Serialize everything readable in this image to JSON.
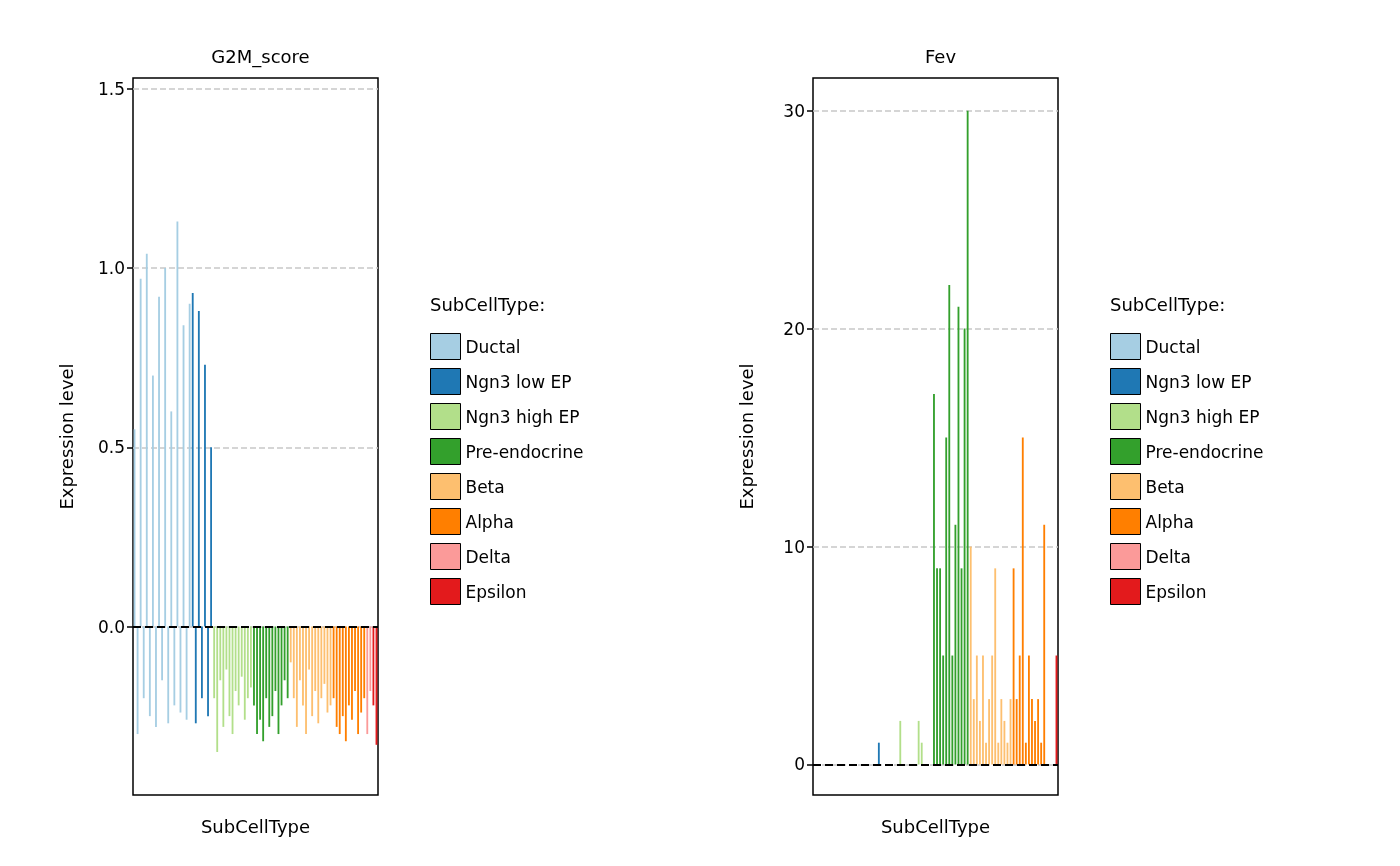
{
  "chart_data": [
    {
      "type": "bar",
      "title": "G2M_score",
      "xlabel": "SubCellType",
      "ylabel": "Expression level",
      "legend_title": "SubCellType:",
      "legend": "right",
      "grid": "y",
      "tick_labels": "y",
      "ylim": [
        -0.47,
        1.53
      ],
      "yticks": [
        {
          "value": 0,
          "label": "0.0"
        },
        0.5,
        {
          "value": 1,
          "label": "1.0"
        },
        1.5
      ],
      "categories": [
        null,
        null,
        null,
        null,
        null,
        null,
        null,
        null,
        null,
        null,
        null,
        null,
        null,
        null,
        null,
        null,
        null,
        null,
        null,
        null,
        null,
        null,
        null,
        null,
        null,
        null,
        null,
        null,
        null,
        null,
        null,
        null,
        null,
        null,
        null,
        null,
        null,
        null,
        null,
        null,
        null,
        null,
        null,
        null,
        null,
        null,
        null,
        null,
        null,
        null,
        null,
        null,
        null,
        null,
        null,
        null,
        null,
        null,
        null,
        null,
        null,
        null,
        null,
        null,
        null,
        null,
        null,
        null,
        null,
        null,
        null,
        null,
        null,
        null,
        null,
        null,
        null,
        null,
        null,
        null
      ],
      "series": [
        {
          "name": "Ductal",
          "color": "#a6cee3",
          "values": [
            0.55,
            -0.3,
            0.97,
            -0.2,
            1.04,
            -0.25,
            0.7,
            -0.28,
            0.92,
            -0.15,
            1.0,
            -0.27,
            0.6,
            -0.22,
            1.13,
            -0.24,
            0.84,
            -0.26,
            0.9,
            null,
            null,
            null,
            null,
            null,
            null,
            null,
            null,
            null,
            null,
            null,
            null,
            null,
            null,
            null,
            null,
            null,
            null,
            null,
            null,
            null,
            null,
            null,
            null,
            null,
            null,
            null,
            null,
            null,
            null,
            null,
            null,
            null,
            null,
            null,
            null,
            null,
            null,
            null,
            null,
            null,
            null,
            null,
            null,
            null,
            null,
            null,
            null,
            null,
            null,
            null,
            null,
            null,
            null,
            null,
            null,
            null,
            null,
            null,
            null,
            null
          ]
        },
        {
          "name": "Ngn3 low EP",
          "color": "#1f78b4",
          "values": [
            null,
            null,
            null,
            null,
            null,
            null,
            null,
            null,
            null,
            null,
            null,
            null,
            null,
            null,
            null,
            null,
            null,
            null,
            null,
            0.93,
            -0.27,
            0.88,
            -0.2,
            0.73,
            -0.25,
            0.5,
            null,
            null,
            null,
            null,
            null,
            null,
            null,
            null,
            null,
            null,
            null,
            null,
            null,
            null,
            null,
            null,
            null,
            null,
            null,
            null,
            null,
            null,
            null,
            null,
            null,
            null,
            null,
            null,
            null,
            null,
            null,
            null,
            null,
            null,
            null,
            null,
            null,
            null,
            null,
            null,
            null,
            null,
            null,
            null,
            null,
            null,
            null,
            null,
            null,
            null,
            null,
            null,
            null,
            null
          ]
        },
        {
          "name": "Ngn3 high EP",
          "color": "#b2df8a",
          "values": [
            null,
            null,
            null,
            null,
            null,
            null,
            null,
            null,
            null,
            null,
            null,
            null,
            null,
            null,
            null,
            null,
            null,
            null,
            null,
            null,
            null,
            null,
            null,
            null,
            null,
            null,
            -0.2,
            -0.35,
            -0.15,
            -0.28,
            -0.12,
            -0.25,
            -0.3,
            -0.18,
            -0.22,
            -0.14,
            -0.26,
            -0.2,
            -0.17,
            null,
            null,
            null,
            null,
            null,
            null,
            null,
            null,
            null,
            null,
            null,
            null,
            null,
            null,
            null,
            null,
            null,
            null,
            null,
            null,
            null,
            null,
            null,
            null,
            null,
            null,
            null,
            null,
            null,
            null,
            null,
            null,
            null,
            null,
            null,
            null,
            null,
            null,
            null,
            null,
            null
          ]
        },
        {
          "name": "Pre-endocrine",
          "color": "#33a02c",
          "values": [
            null,
            null,
            null,
            null,
            null,
            null,
            null,
            null,
            null,
            null,
            null,
            null,
            null,
            null,
            null,
            null,
            null,
            null,
            null,
            null,
            null,
            null,
            null,
            null,
            null,
            null,
            null,
            null,
            null,
            null,
            null,
            null,
            null,
            null,
            null,
            null,
            null,
            null,
            null,
            -0.22,
            -0.3,
            -0.26,
            -0.32,
            -0.2,
            -0.28,
            -0.25,
            -0.18,
            -0.3,
            -0.22,
            -0.15,
            -0.2,
            null,
            null,
            null,
            null,
            null,
            null,
            null,
            null,
            null,
            null,
            null,
            null,
            null,
            null,
            null,
            null,
            null,
            null,
            null,
            null,
            null,
            null,
            null,
            null,
            null,
            null,
            null,
            null,
            null
          ]
        },
        {
          "name": "Beta",
          "color": "#fdbf6f",
          "values": [
            null,
            null,
            null,
            null,
            null,
            null,
            null,
            null,
            null,
            null,
            null,
            null,
            null,
            null,
            null,
            null,
            null,
            null,
            null,
            null,
            null,
            null,
            null,
            null,
            null,
            null,
            null,
            null,
            null,
            null,
            null,
            null,
            null,
            null,
            null,
            null,
            null,
            null,
            null,
            null,
            null,
            null,
            null,
            null,
            null,
            null,
            null,
            null,
            null,
            null,
            null,
            -0.1,
            -0.2,
            -0.28,
            -0.15,
            -0.22,
            -0.3,
            -0.12,
            -0.25,
            -0.18,
            -0.27,
            -0.2,
            -0.16,
            -0.24,
            -0.22,
            null,
            null,
            null,
            null,
            null,
            null,
            null,
            null,
            null,
            null,
            null,
            null,
            null,
            null,
            null
          ]
        },
        {
          "name": "Alpha",
          "color": "#ff7f00",
          "values": [
            null,
            null,
            null,
            null,
            null,
            null,
            null,
            null,
            null,
            null,
            null,
            null,
            null,
            null,
            null,
            null,
            null,
            null,
            null,
            null,
            null,
            null,
            null,
            null,
            null,
            null,
            null,
            null,
            null,
            null,
            null,
            null,
            null,
            null,
            null,
            null,
            null,
            null,
            null,
            null,
            null,
            null,
            null,
            null,
            null,
            null,
            null,
            null,
            null,
            null,
            null,
            null,
            null,
            null,
            null,
            null,
            null,
            null,
            null,
            null,
            null,
            null,
            null,
            null,
            null,
            -0.2,
            -0.28,
            -0.3,
            -0.25,
            -0.32,
            -0.22,
            -0.26,
            -0.18,
            -0.3,
            -0.24,
            -0.2,
            null,
            null,
            null,
            null
          ]
        },
        {
          "name": "Delta",
          "color": "#fb9a99",
          "values": [
            null,
            null,
            null,
            null,
            null,
            null,
            null,
            null,
            null,
            null,
            null,
            null,
            null,
            null,
            null,
            null,
            null,
            null,
            null,
            null,
            null,
            null,
            null,
            null,
            null,
            null,
            null,
            null,
            null,
            null,
            null,
            null,
            null,
            null,
            null,
            null,
            null,
            null,
            null,
            null,
            null,
            null,
            null,
            null,
            null,
            null,
            null,
            null,
            null,
            null,
            null,
            null,
            null,
            null,
            null,
            null,
            null,
            null,
            null,
            null,
            null,
            null,
            null,
            null,
            null,
            null,
            null,
            null,
            null,
            null,
            null,
            null,
            null,
            null,
            null,
            null,
            -0.3,
            -0.18,
            null,
            null
          ]
        },
        {
          "name": "Epsilon",
          "color": "#e31a1c",
          "values": [
            null,
            null,
            null,
            null,
            null,
            null,
            null,
            null,
            null,
            null,
            null,
            null,
            null,
            null,
            null,
            null,
            null,
            null,
            null,
            null,
            null,
            null,
            null,
            null,
            null,
            null,
            null,
            null,
            null,
            null,
            null,
            null,
            null,
            null,
            null,
            null,
            null,
            null,
            null,
            null,
            null,
            null,
            null,
            null,
            null,
            null,
            null,
            null,
            null,
            null,
            null,
            null,
            null,
            null,
            null,
            null,
            null,
            null,
            null,
            null,
            null,
            null,
            null,
            null,
            null,
            null,
            null,
            null,
            null,
            null,
            null,
            null,
            null,
            null,
            null,
            null,
            null,
            null,
            -0.22,
            -0.33
          ]
        }
      ],
      "ref_lines": [
        {
          "axis": "y",
          "value": 0,
          "color": "#000000",
          "line_style": "dashed"
        }
      ]
    },
    {
      "type": "bar",
      "title": "Fev",
      "xlabel": "SubCellType",
      "ylabel": "Expression level",
      "legend_title": "SubCellType:",
      "legend": "right",
      "grid": "y",
      "tick_labels": "y",
      "ylim": [
        -1.4,
        31.5
      ],
      "yticks": [
        0,
        10,
        20,
        30
      ],
      "categories": [
        null,
        null,
        null,
        null,
        null,
        null,
        null,
        null,
        null,
        null,
        null,
        null,
        null,
        null,
        null,
        null,
        null,
        null,
        null,
        null,
        null,
        null,
        null,
        null,
        null,
        null,
        null,
        null,
        null,
        null,
        null,
        null,
        null,
        null,
        null,
        null,
        null,
        null,
        null,
        null,
        null,
        null,
        null,
        null,
        null,
        null,
        null,
        null,
        null,
        null,
        null,
        null,
        null,
        null,
        null,
        null,
        null,
        null,
        null,
        null,
        null,
        null,
        null,
        null,
        null,
        null,
        null,
        null,
        null,
        null,
        null,
        null,
        null,
        null,
        null,
        null,
        null,
        null,
        null,
        null
      ],
      "series": [
        {
          "name": "Ductal",
          "color": "#a6cee3",
          "values": [
            0,
            0,
            0,
            0,
            0,
            0,
            0,
            0,
            0,
            0,
            0,
            0,
            0,
            0,
            0,
            0,
            0,
            0,
            0,
            null,
            null,
            null,
            null,
            null,
            null,
            null,
            null,
            null,
            null,
            null,
            null,
            null,
            null,
            null,
            null,
            null,
            null,
            null,
            null,
            null,
            null,
            null,
            null,
            null,
            null,
            null,
            null,
            null,
            null,
            null,
            null,
            null,
            null,
            null,
            null,
            null,
            null,
            null,
            null,
            null,
            null,
            null,
            null,
            null,
            null,
            null,
            null,
            null,
            null,
            null,
            null,
            null,
            null,
            null,
            null,
            null,
            null,
            null,
            null,
            null
          ]
        },
        {
          "name": "Ngn3 low EP",
          "color": "#1f78b4",
          "values": [
            null,
            null,
            null,
            null,
            null,
            null,
            null,
            null,
            null,
            null,
            null,
            null,
            null,
            null,
            null,
            null,
            null,
            null,
            null,
            0,
            0,
            1,
            0,
            0,
            0,
            0,
            null,
            null,
            null,
            null,
            null,
            null,
            null,
            null,
            null,
            null,
            null,
            null,
            null,
            null,
            null,
            null,
            null,
            null,
            null,
            null,
            null,
            null,
            null,
            null,
            null,
            null,
            null,
            null,
            null,
            null,
            null,
            null,
            null,
            null,
            null,
            null,
            null,
            null,
            null,
            null,
            null,
            null,
            null,
            null,
            null,
            null,
            null,
            null,
            null,
            null,
            null,
            null,
            null,
            null
          ]
        },
        {
          "name": "Ngn3 high EP",
          "color": "#b2df8a",
          "values": [
            null,
            null,
            null,
            null,
            null,
            null,
            null,
            null,
            null,
            null,
            null,
            null,
            null,
            null,
            null,
            null,
            null,
            null,
            null,
            null,
            null,
            null,
            null,
            null,
            null,
            null,
            0,
            0,
            2,
            0,
            0,
            0,
            0,
            0,
            2,
            1,
            0,
            0,
            0,
            null,
            null,
            null,
            null,
            null,
            null,
            null,
            null,
            null,
            null,
            null,
            null,
            null,
            null,
            null,
            null,
            null,
            null,
            null,
            null,
            null,
            null,
            null,
            null,
            null,
            null,
            null,
            null,
            null,
            null,
            null,
            null,
            null,
            null,
            null,
            null,
            null,
            null,
            null,
            null,
            null
          ]
        },
        {
          "name": "Pre-endocrine",
          "color": "#33a02c",
          "values": [
            null,
            null,
            null,
            null,
            null,
            null,
            null,
            null,
            null,
            null,
            null,
            null,
            null,
            null,
            null,
            null,
            null,
            null,
            null,
            null,
            null,
            null,
            null,
            null,
            null,
            null,
            null,
            null,
            null,
            null,
            null,
            null,
            null,
            null,
            null,
            null,
            null,
            null,
            null,
            17,
            9,
            9,
            5,
            15,
            22,
            5,
            11,
            21,
            9,
            20,
            30,
            null,
            null,
            null,
            null,
            null,
            null,
            null,
            null,
            null,
            null,
            null,
            null,
            null,
            null,
            null,
            null,
            null,
            null,
            null,
            null,
            null,
            null,
            null,
            null,
            null,
            null,
            null,
            null,
            null
          ]
        },
        {
          "name": "Beta",
          "color": "#fdbf6f",
          "values": [
            null,
            null,
            null,
            null,
            null,
            null,
            null,
            null,
            null,
            null,
            null,
            null,
            null,
            null,
            null,
            null,
            null,
            null,
            null,
            null,
            null,
            null,
            null,
            null,
            null,
            null,
            null,
            null,
            null,
            null,
            null,
            null,
            null,
            null,
            null,
            null,
            null,
            null,
            null,
            null,
            null,
            null,
            null,
            null,
            null,
            null,
            null,
            null,
            null,
            null,
            null,
            10,
            3,
            5,
            2,
            5,
            1,
            3,
            5,
            9,
            1,
            3,
            2,
            1,
            3,
            null,
            null,
            null,
            null,
            null,
            null,
            null,
            null,
            null,
            null,
            null,
            null,
            null,
            null,
            null
          ]
        },
        {
          "name": "Alpha",
          "color": "#ff7f00",
          "values": [
            null,
            null,
            null,
            null,
            null,
            null,
            null,
            null,
            null,
            null,
            null,
            null,
            null,
            null,
            null,
            null,
            null,
            null,
            null,
            null,
            null,
            null,
            null,
            null,
            null,
            null,
            null,
            null,
            null,
            null,
            null,
            null,
            null,
            null,
            null,
            null,
            null,
            null,
            null,
            null,
            null,
            null,
            null,
            null,
            null,
            null,
            null,
            null,
            null,
            null,
            null,
            null,
            null,
            null,
            null,
            null,
            null,
            null,
            null,
            null,
            null,
            null,
            null,
            null,
            null,
            9,
            3,
            5,
            15,
            1,
            5,
            3,
            2,
            3,
            1,
            11,
            null,
            null,
            null,
            null
          ]
        },
        {
          "name": "Delta",
          "color": "#fb9a99",
          "values": [
            null,
            null,
            null,
            null,
            null,
            null,
            null,
            null,
            null,
            null,
            null,
            null,
            null,
            null,
            null,
            null,
            null,
            null,
            null,
            null,
            null,
            null,
            null,
            null,
            null,
            null,
            null,
            null,
            null,
            null,
            null,
            null,
            null,
            null,
            null,
            null,
            null,
            null,
            null,
            null,
            null,
            null,
            null,
            null,
            null,
            null,
            null,
            null,
            null,
            null,
            null,
            null,
            null,
            null,
            null,
            null,
            null,
            null,
            null,
            null,
            null,
            null,
            null,
            null,
            null,
            null,
            null,
            null,
            null,
            null,
            null,
            null,
            null,
            null,
            null,
            null,
            0,
            0,
            null,
            null
          ]
        },
        {
          "name": "Epsilon",
          "color": "#e31a1c",
          "values": [
            null,
            null,
            null,
            null,
            null,
            null,
            null,
            null,
            null,
            null,
            null,
            null,
            null,
            null,
            null,
            null,
            null,
            null,
            null,
            null,
            null,
            null,
            null,
            null,
            null,
            null,
            null,
            null,
            null,
            null,
            null,
            null,
            null,
            null,
            null,
            null,
            null,
            null,
            null,
            null,
            null,
            null,
            null,
            null,
            null,
            null,
            null,
            null,
            null,
            null,
            null,
            null,
            null,
            null,
            null,
            null,
            null,
            null,
            null,
            null,
            null,
            null,
            null,
            null,
            null,
            null,
            null,
            null,
            null,
            null,
            null,
            null,
            null,
            null,
            null,
            null,
            null,
            null,
            0,
            5
          ]
        }
      ],
      "ref_lines": [
        {
          "axis": "y",
          "value": 0,
          "color": "#000000",
          "line_style": "dashed"
        }
      ]
    }
  ]
}
